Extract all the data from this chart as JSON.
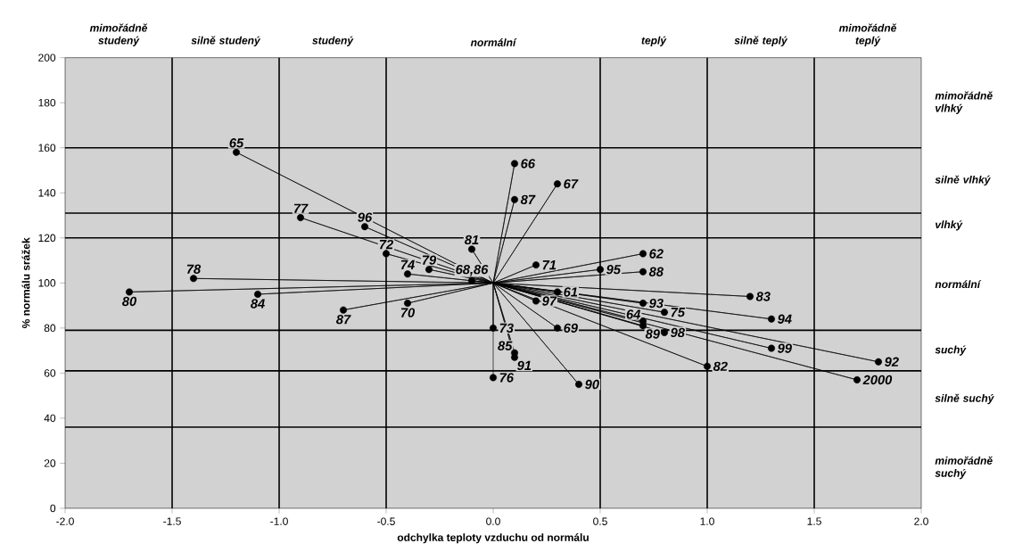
{
  "chart_data": {
    "type": "scatter",
    "xlabel": "odchylka teploty vzduchu od normálu",
    "ylabel": "% normálu srážek",
    "xlim": [
      -2,
      2
    ],
    "ylim": [
      0,
      200
    ],
    "xticks": [
      {
        "value": -2,
        "label": "-2.0"
      },
      {
        "value": -1.5,
        "label": "-1.5"
      },
      {
        "value": -1,
        "label": "-1.0"
      },
      {
        "value": -0.5,
        "label": "-0.5"
      },
      {
        "value": 0,
        "label": "0.0"
      },
      {
        "value": 0.5,
        "label": "0.5"
      },
      {
        "value": 1,
        "label": "1.0"
      },
      {
        "value": 1.5,
        "label": "1.5"
      },
      {
        "value": 2,
        "label": "2.0"
      }
    ],
    "yticks": [
      0,
      20,
      40,
      60,
      80,
      100,
      120,
      140,
      160,
      180,
      200
    ],
    "ref_lines": [
      {
        "axis": "x",
        "value": -1.5,
        "color": "#000000"
      },
      {
        "axis": "x",
        "value": -1,
        "color": "#000000"
      },
      {
        "axis": "x",
        "value": -0.5,
        "color": "#000000"
      },
      {
        "axis": "x",
        "value": 0.5,
        "color": "#000000"
      },
      {
        "axis": "x",
        "value": 1,
        "color": "#000000"
      },
      {
        "axis": "x",
        "value": 1.5,
        "color": "#000000"
      },
      {
        "axis": "y",
        "value": 160,
        "color": "#000000"
      },
      {
        "axis": "y",
        "value": 131,
        "color": "#000000"
      },
      {
        "axis": "y",
        "value": 120,
        "color": "#000000"
      },
      {
        "axis": "y",
        "value": 79,
        "color": "#000000"
      },
      {
        "axis": "y",
        "value": 61,
        "color": "#000000"
      },
      {
        "axis": "y",
        "value": 36,
        "color": "#000000"
      }
    ],
    "annotations": [
      "mimořádně studený",
      "silně studený",
      "studený",
      "normální",
      "teplý",
      "silně teplý",
      "mimořádně teplý",
      "mimořádně vlhký",
      "silně vlhký",
      "vlhký",
      "normální",
      "suchý",
      "silně suchý",
      "mimořádně suchý",
      {
        "text": "65",
        "x": -1.2,
        "y": 158
      },
      {
        "text": "77",
        "x": -0.9,
        "y": 129
      },
      {
        "text": "96",
        "x": -0.6,
        "y": 125
      },
      {
        "text": "72",
        "x": -0.5,
        "y": 113
      },
      {
        "text": "79",
        "x": -0.3,
        "y": 106
      },
      {
        "text": "74",
        "x": -0.4,
        "y": 104
      },
      {
        "text": "81",
        "x": -0.1,
        "y": 115
      },
      {
        "text": "78",
        "x": -1.4,
        "y": 102
      },
      {
        "text": "80",
        "x": -1.7,
        "y": 96
      },
      {
        "text": "84",
        "x": -1.1,
        "y": 95
      },
      {
        "text": "87",
        "x": -0.7,
        "y": 88
      },
      {
        "text": "70",
        "x": -0.4,
        "y": 91
      },
      {
        "text": "68,86",
        "x": -0.1,
        "y": 101
      },
      {
        "text": "66",
        "x": 0.1,
        "y": 153
      },
      {
        "text": "87",
        "x": 0.1,
        "y": 137
      },
      {
        "text": "67",
        "x": 0.3,
        "y": 144
      },
      {
        "text": "71",
        "x": 0.2,
        "y": 108
      },
      {
        "text": "95",
        "x": 0.5,
        "y": 106
      },
      {
        "text": "62",
        "x": 0.7,
        "y": 113
      },
      {
        "text": "88",
        "x": 0.7,
        "y": 105
      },
      {
        "text": "61",
        "x": 0.3,
        "y": 96
      },
      {
        "text": "97",
        "x": 0.2,
        "y": 92
      },
      {
        "text": "93",
        "x": 0.7,
        "y": 91
      },
      {
        "text": "75",
        "x": 0.8,
        "y": 87
      },
      {
        "text": "83",
        "x": 1.2,
        "y": 94
      },
      {
        "text": "94",
        "x": 1.3,
        "y": 84
      },
      {
        "text": "64",
        "x": 0.7,
        "y": 83
      },
      {
        "text": "89",
        "x": 0.7,
        "y": 81
      },
      {
        "text": "98",
        "x": 0.8,
        "y": 78
      },
      {
        "text": "82",
        "x": 1.0,
        "y": 63
      },
      {
        "text": "99",
        "x": 1.3,
        "y": 71
      },
      {
        "text": "92",
        "x": 1.8,
        "y": 65
      },
      {
        "text": "2000",
        "x": 1.7,
        "y": 57
      },
      {
        "text": "69",
        "x": 0.3,
        "y": 80
      },
      {
        "text": "73",
        "x": 0,
        "y": 80
      },
      {
        "text": "85",
        "x": 0.1,
        "y": 69
      },
      {
        "text": "91",
        "x": 0.1,
        "y": 67
      },
      {
        "text": "90",
        "x": 0.4,
        "y": 55
      },
      {
        "text": "76",
        "x": 0,
        "y": 58
      }
    ],
    "series": [
      {
        "color": "#000000",
        "marker": "circle",
        "x": [
          -1.2,
          -0.9,
          -0.6,
          -0.5,
          -0.3,
          -0.4,
          -0.1,
          -1.4,
          -1.7,
          -1.1,
          -0.7,
          -0.4,
          -0.1,
          0.1,
          0.1,
          0.3,
          0.2,
          0.5,
          0.7,
          0.7,
          0.3,
          0.2,
          0.7,
          0.8,
          1.2,
          1.3,
          0.7,
          0.7,
          0.8,
          1.0,
          1.3,
          1.8,
          1.7,
          0.3,
          0,
          0.1,
          0.1,
          0.4,
          0
        ],
        "values": [
          158,
          129,
          125,
          113,
          106,
          104,
          115,
          102,
          96,
          95,
          88,
          91,
          101,
          153,
          137,
          144,
          108,
          106,
          113,
          105,
          96,
          92,
          91,
          87,
          94,
          84,
          83,
          81,
          78,
          63,
          71,
          65,
          57,
          80,
          80,
          69,
          67,
          55,
          58
        ]
      },
      {
        "type": "line",
        "color": "#000000",
        "line_style": "solid",
        "marker": "none",
        "x": [
          0,
          -1.2,
          0,
          -0.9,
          0,
          -0.6,
          0,
          -0.5,
          0,
          -0.3,
          0,
          -0.4,
          0,
          -0.1,
          0,
          -1.4,
          0,
          -1.7,
          0,
          -1.1,
          0,
          -0.7,
          0,
          -0.4,
          0,
          -0.1,
          0,
          0.1,
          0,
          0.1,
          0,
          0.3,
          0,
          0.2,
          0,
          0.5,
          0,
          0.7,
          0,
          0.7,
          0,
          0.3,
          0,
          0.2,
          0,
          0.7,
          0,
          0.8,
          0,
          1.2,
          0,
          1.3,
          0,
          0.7,
          0,
          0.7,
          0,
          0.8,
          0,
          1.0,
          0,
          1.3,
          0,
          1.8,
          0,
          1.7,
          0,
          0.3,
          0,
          0,
          0,
          0.1,
          0,
          0.1,
          0,
          0.4,
          0,
          0
        ],
        "values": [
          100,
          158,
          100,
          129,
          100,
          125,
          100,
          113,
          100,
          106,
          100,
          104,
          100,
          115,
          100,
          102,
          100,
          96,
          100,
          95,
          100,
          88,
          100,
          91,
          100,
          101,
          100,
          153,
          100,
          137,
          100,
          144,
          100,
          108,
          100,
          106,
          100,
          113,
          100,
          105,
          100,
          96,
          100,
          92,
          100,
          91,
          100,
          87,
          100,
          94,
          100,
          84,
          100,
          83,
          100,
          81,
          100,
          78,
          100,
          63,
          100,
          71,
          100,
          65,
          100,
          57,
          100,
          80,
          100,
          80,
          100,
          69,
          100,
          67,
          100,
          55,
          100,
          58
        ]
      }
    ]
  }
}
